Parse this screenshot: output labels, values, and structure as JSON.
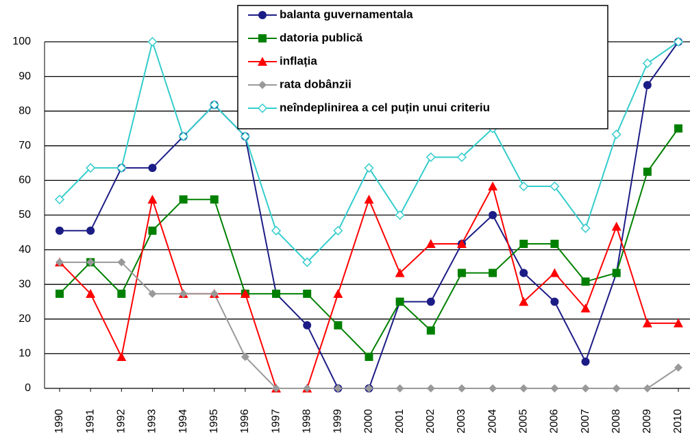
{
  "chart_data": {
    "type": "line",
    "categories": [
      "1990",
      "1991",
      "1992",
      "1993",
      "1994",
      "1995",
      "1996",
      "1997",
      "1998",
      "1999",
      "2000",
      "2001",
      "2002",
      "2003",
      "2004",
      "2005",
      "2006",
      "2007",
      "2008",
      "2009",
      "2010"
    ],
    "ylim": [
      0,
      100
    ],
    "yticks": [
      0,
      10,
      20,
      30,
      40,
      50,
      60,
      70,
      80,
      90,
      100
    ],
    "grid": true,
    "series": [
      {
        "name": "balanta guvernamentala",
        "color": "#1c1c86",
        "marker": "circle",
        "values": [
          45.5,
          45.5,
          63.6,
          63.6,
          72.7,
          81.8,
          72.7,
          27.3,
          18.2,
          0,
          0,
          25,
          25,
          41.7,
          50,
          33.3,
          25,
          7.7,
          33.3,
          87.5,
          100
        ]
      },
      {
        "name": "datoria publică",
        "color": "#008000",
        "marker": "square",
        "values": [
          27.3,
          36.4,
          27.3,
          45.5,
          54.5,
          54.5,
          27.3,
          27.3,
          27.3,
          18.2,
          9.1,
          25,
          16.7,
          33.3,
          33.3,
          41.7,
          41.7,
          30.8,
          33.3,
          62.5,
          75
        ]
      },
      {
        "name": "inflația",
        "color": "#ff0000",
        "marker": "triangle",
        "values": [
          36.4,
          27.3,
          9.1,
          54.5,
          27.3,
          27.3,
          27.3,
          0,
          0,
          27.3,
          54.5,
          33.3,
          41.7,
          41.7,
          58.3,
          25,
          33.3,
          23.1,
          46.7,
          18.8,
          18.8
        ]
      },
      {
        "name": "rata dobânzii",
        "color": "#999999",
        "marker": "diamond",
        "values": [
          36.4,
          36.4,
          36.4,
          27.3,
          27.3,
          27.3,
          9.1,
          0,
          0,
          0,
          0,
          0,
          0,
          0,
          0,
          0,
          0,
          0,
          0,
          0,
          6
        ]
      },
      {
        "name": "neîndeplinirea a cel puțin unui criteriu",
        "color": "#33cccc",
        "marker": "open-diamond",
        "values": [
          54.5,
          63.6,
          63.6,
          100,
          72.7,
          81.8,
          72.7,
          45.5,
          36.4,
          45.5,
          63.6,
          50,
          66.7,
          66.7,
          75,
          58.3,
          58.3,
          46.2,
          73.3,
          93.8,
          100
        ]
      }
    ]
  }
}
